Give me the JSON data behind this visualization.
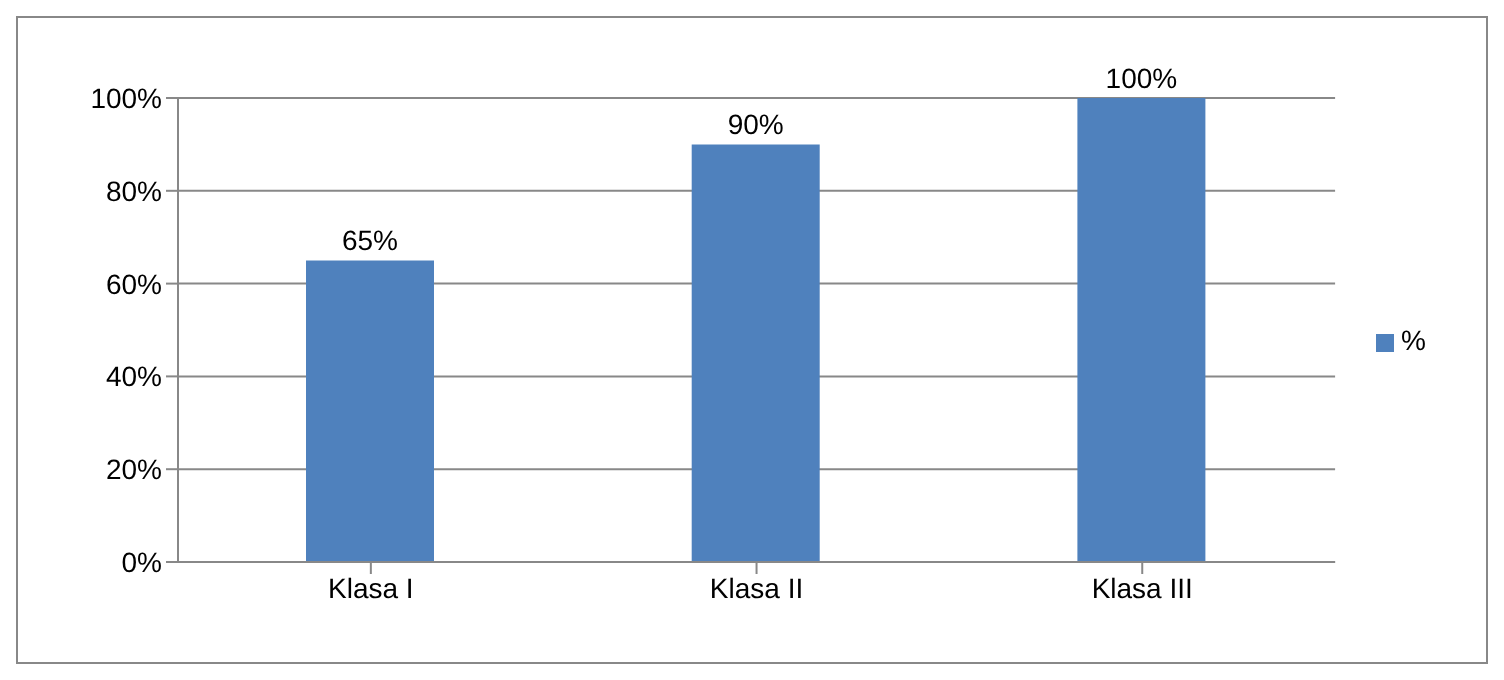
{
  "chart_data": {
    "type": "bar",
    "categories": [
      "Klasa I",
      "Klasa II",
      "Klasa III"
    ],
    "series": [
      {
        "name": "%",
        "color": "#4f81bd",
        "values": [
          65,
          90,
          100
        ],
        "value_labels": [
          "65%",
          "90%",
          "100%"
        ]
      }
    ],
    "ylim": [
      0,
      100
    ],
    "yticks": [
      {
        "value": 0,
        "label": "0%"
      },
      {
        "value": 20,
        "label": "20%"
      },
      {
        "value": 40,
        "label": "40%"
      },
      {
        "value": 60,
        "label": "60%"
      },
      {
        "value": 80,
        "label": "80%"
      },
      {
        "value": 100,
        "label": "100%"
      }
    ],
    "grid": "y",
    "legend": "right"
  }
}
